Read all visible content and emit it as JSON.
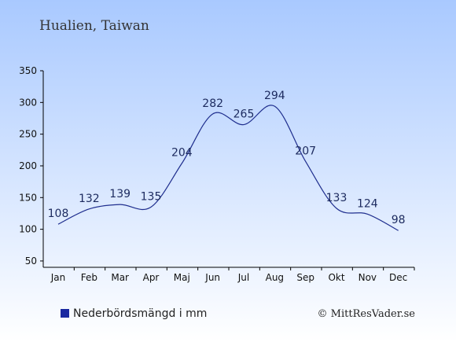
{
  "location_title": "Hualien, Taiwan",
  "legend_label": "Nederbördsmängd i mm",
  "credit": "© MittResVader.se",
  "colors": {
    "bg_top": "#a9c9ff",
    "bg_bottom": "#ffffff",
    "line": "#1f2e8e",
    "label": "#1c2a5e",
    "legend_swatch": "#1a28a0",
    "axis": "#000000"
  },
  "chart_data": {
    "type": "line",
    "categories": [
      "Jan",
      "Feb",
      "Mar",
      "Apr",
      "Maj",
      "Jun",
      "Jul",
      "Aug",
      "Sep",
      "Okt",
      "Nov",
      "Dec"
    ],
    "series": [
      {
        "name": "Nederbördsmängd i mm",
        "values": [
          108,
          132,
          139,
          135,
          204,
          282,
          265,
          294,
          207,
          133,
          124,
          98
        ]
      }
    ],
    "y_ticks": [
      50,
      100,
      150,
      200,
      250,
      300,
      350
    ],
    "ylim": [
      40,
      350
    ],
    "grid": false,
    "legend_position": "bottom-left",
    "title": "Hualien, Taiwan"
  }
}
